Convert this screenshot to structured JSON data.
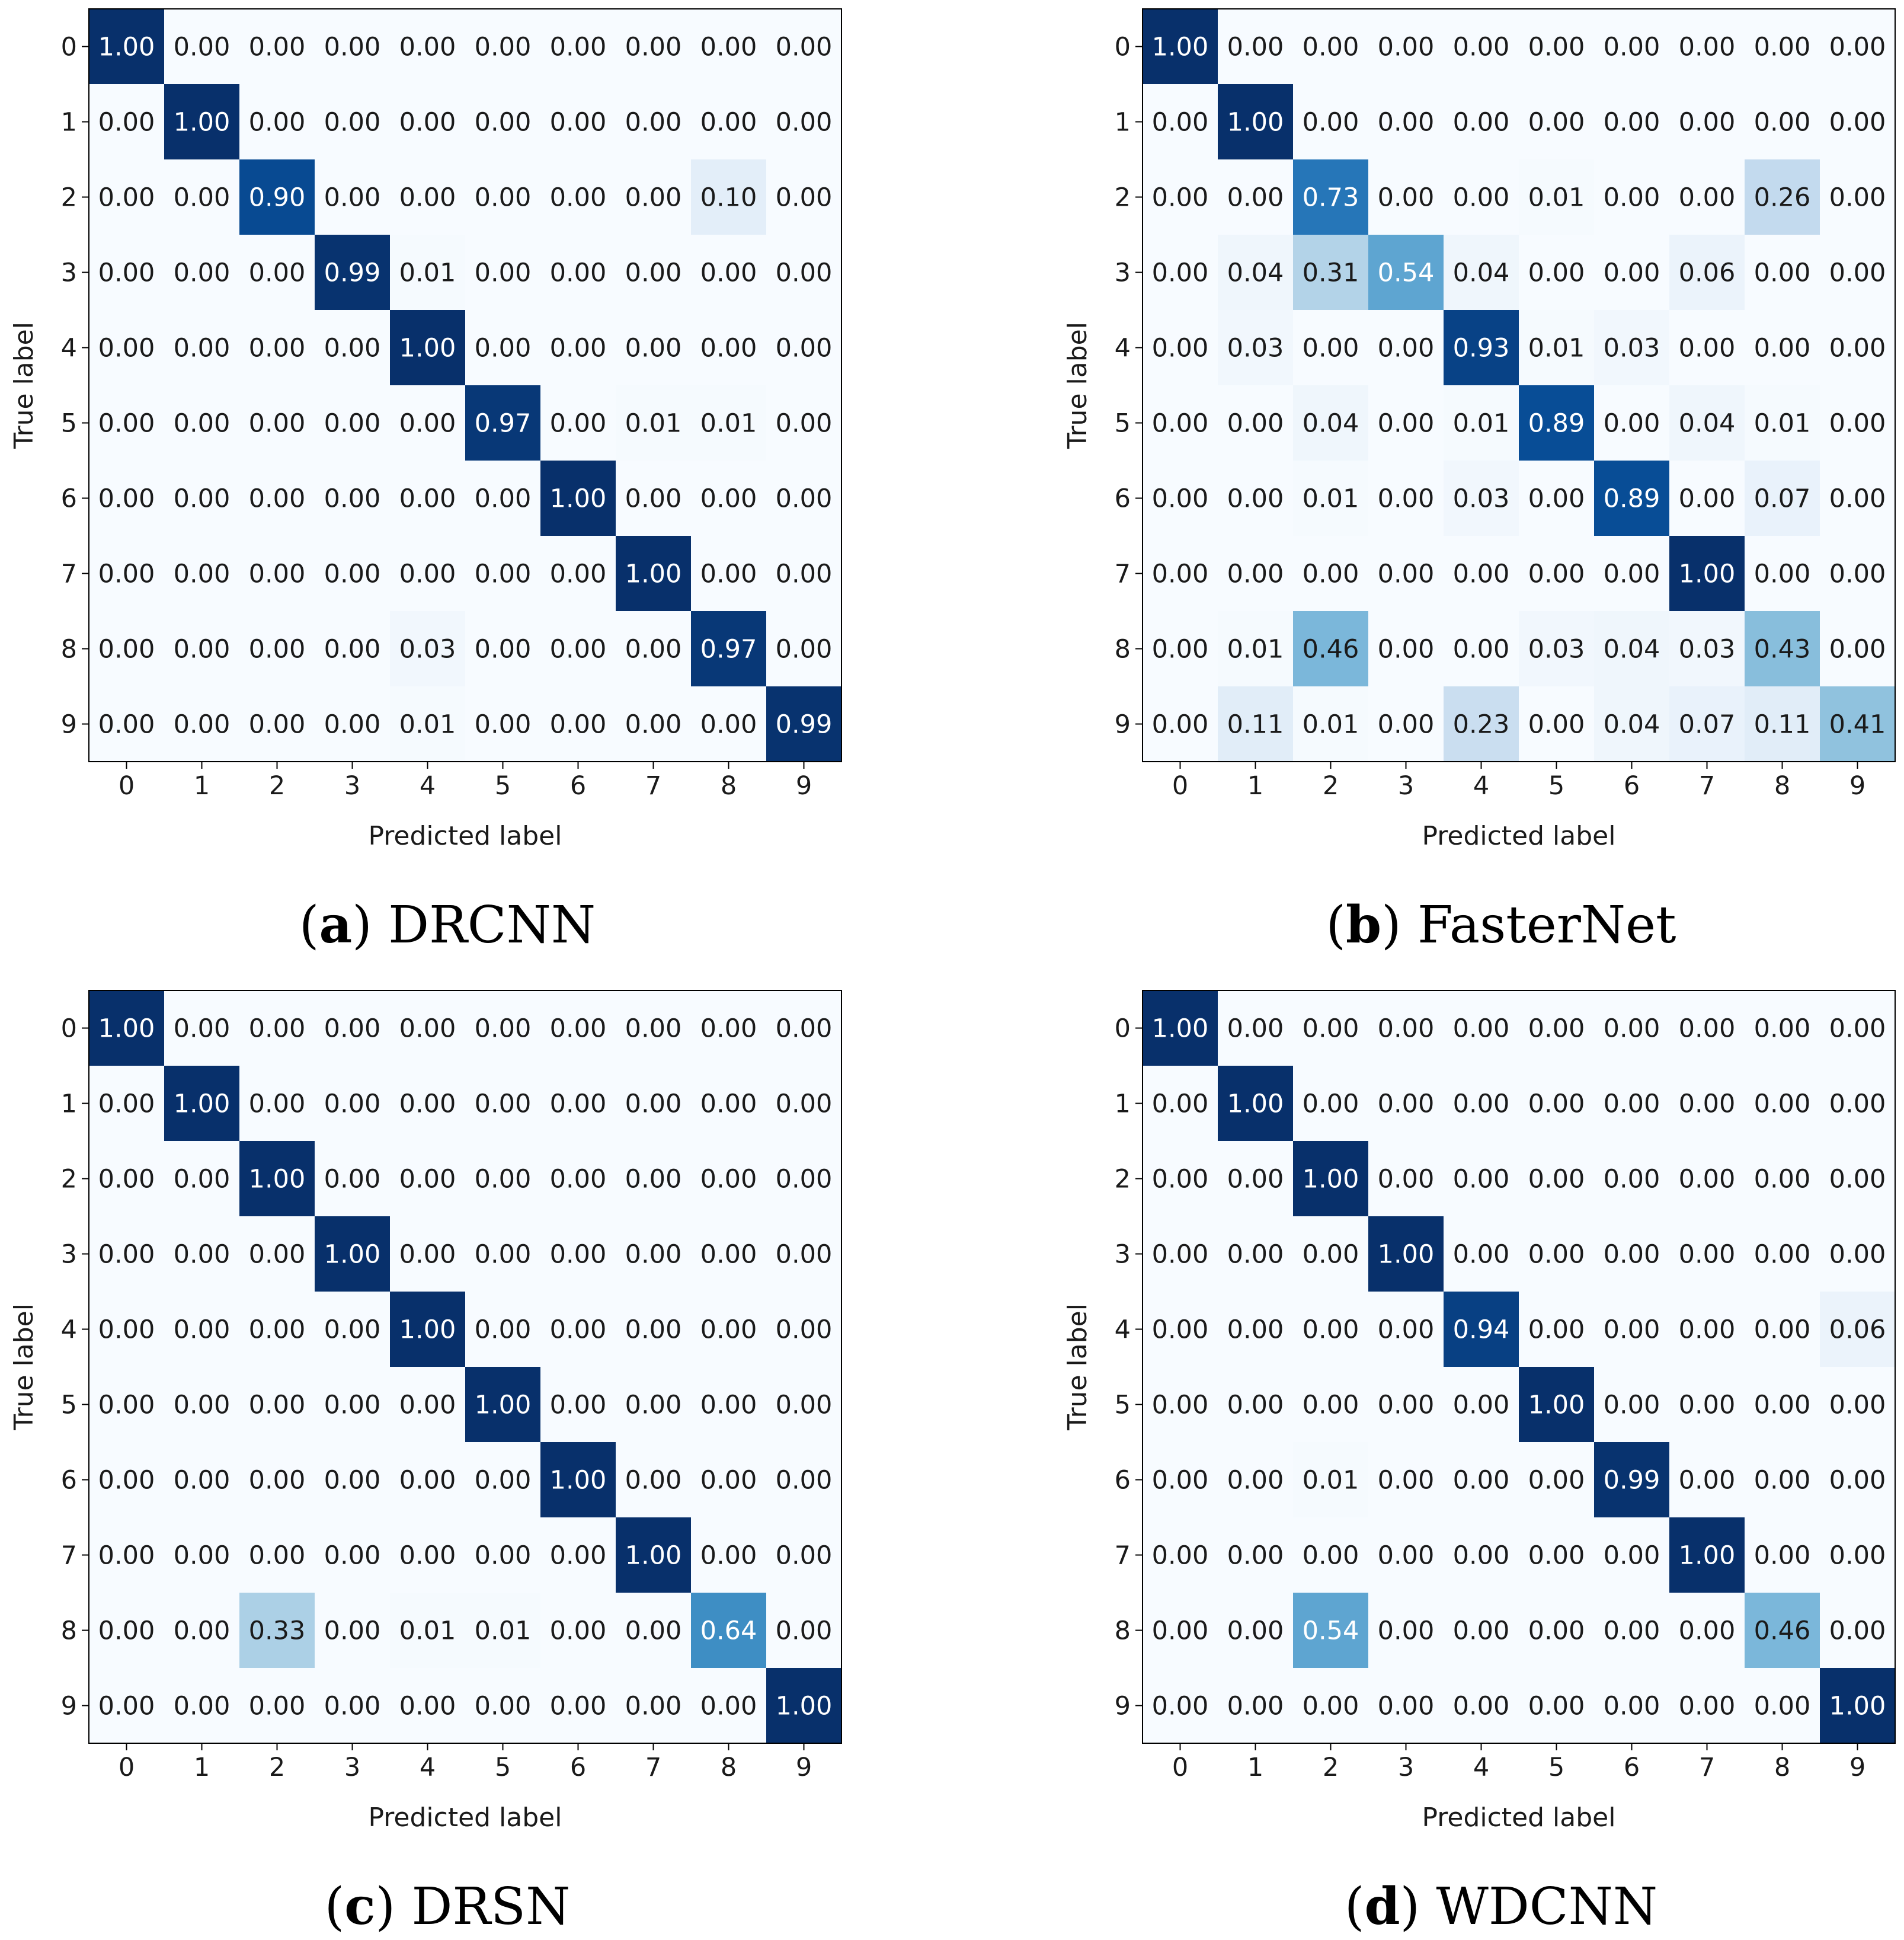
{
  "chart_data": [
    {
      "type": "heatmap",
      "panel_label": "a",
      "model_name": "DRCNN",
      "xlabel": "Predicted label",
      "ylabel": "True label",
      "x_ticks": [
        "0",
        "1",
        "2",
        "3",
        "4",
        "5",
        "6",
        "7",
        "8",
        "9"
      ],
      "y_ticks": [
        "0",
        "1",
        "2",
        "3",
        "4",
        "5",
        "6",
        "7",
        "8",
        "9"
      ],
      "value_range": [
        0,
        1
      ],
      "colormap": "Blues",
      "cells": [
        [
          "1.00",
          "0.00",
          "0.00",
          "0.00",
          "0.00",
          "0.00",
          "0.00",
          "0.00",
          "0.00",
          "0.00"
        ],
        [
          "0.00",
          "1.00",
          "0.00",
          "0.00",
          "0.00",
          "0.00",
          "0.00",
          "0.00",
          "0.00",
          "0.00"
        ],
        [
          "0.00",
          "0.00",
          "0.90",
          "0.00",
          "0.00",
          "0.00",
          "0.00",
          "0.00",
          "0.10",
          "0.00"
        ],
        [
          "0.00",
          "0.00",
          "0.00",
          "0.99",
          "0.01",
          "0.00",
          "0.00",
          "0.00",
          "0.00",
          "0.00"
        ],
        [
          "0.00",
          "0.00",
          "0.00",
          "0.00",
          "1.00",
          "0.00",
          "0.00",
          "0.00",
          "0.00",
          "0.00"
        ],
        [
          "0.00",
          "0.00",
          "0.00",
          "0.00",
          "0.00",
          "0.97",
          "0.00",
          "0.01",
          "0.01",
          "0.00"
        ],
        [
          "0.00",
          "0.00",
          "0.00",
          "0.00",
          "0.00",
          "0.00",
          "1.00",
          "0.00",
          "0.00",
          "0.00"
        ],
        [
          "0.00",
          "0.00",
          "0.00",
          "0.00",
          "0.00",
          "0.00",
          "0.00",
          "1.00",
          "0.00",
          "0.00"
        ],
        [
          "0.00",
          "0.00",
          "0.00",
          "0.00",
          "0.03",
          "0.00",
          "0.00",
          "0.00",
          "0.97",
          "0.00"
        ],
        [
          "0.00",
          "0.00",
          "0.00",
          "0.00",
          "0.01",
          "0.00",
          "0.00",
          "0.00",
          "0.00",
          "0.99"
        ]
      ]
    },
    {
      "type": "heatmap",
      "panel_label": "b",
      "model_name": "FasterNet",
      "xlabel": "Predicted label",
      "ylabel": "True label",
      "x_ticks": [
        "0",
        "1",
        "2",
        "3",
        "4",
        "5",
        "6",
        "7",
        "8",
        "9"
      ],
      "y_ticks": [
        "0",
        "1",
        "2",
        "3",
        "4",
        "5",
        "6",
        "7",
        "8",
        "9"
      ],
      "value_range": [
        0,
        1
      ],
      "colormap": "Blues",
      "cells": [
        [
          "1.00",
          "0.00",
          "0.00",
          "0.00",
          "0.00",
          "0.00",
          "0.00",
          "0.00",
          "0.00",
          "0.00"
        ],
        [
          "0.00",
          "1.00",
          "0.00",
          "0.00",
          "0.00",
          "0.00",
          "0.00",
          "0.00",
          "0.00",
          "0.00"
        ],
        [
          "0.00",
          "0.00",
          "0.73",
          "0.00",
          "0.00",
          "0.01",
          "0.00",
          "0.00",
          "0.26",
          "0.00"
        ],
        [
          "0.00",
          "0.04",
          "0.31",
          "0.54",
          "0.04",
          "0.00",
          "0.00",
          "0.06",
          "0.00",
          "0.00"
        ],
        [
          "0.00",
          "0.03",
          "0.00",
          "0.00",
          "0.93",
          "0.01",
          "0.03",
          "0.00",
          "0.00",
          "0.00"
        ],
        [
          "0.00",
          "0.00",
          "0.04",
          "0.00",
          "0.01",
          "0.89",
          "0.00",
          "0.04",
          "0.01",
          "0.00"
        ],
        [
          "0.00",
          "0.00",
          "0.01",
          "0.00",
          "0.03",
          "0.00",
          "0.89",
          "0.00",
          "0.07",
          "0.00"
        ],
        [
          "0.00",
          "0.00",
          "0.00",
          "0.00",
          "0.00",
          "0.00",
          "0.00",
          "1.00",
          "0.00",
          "0.00"
        ],
        [
          "0.00",
          "0.01",
          "0.46",
          "0.00",
          "0.00",
          "0.03",
          "0.04",
          "0.03",
          "0.43",
          "0.00"
        ],
        [
          "0.00",
          "0.11",
          "0.01",
          "0.00",
          "0.23",
          "0.00",
          "0.04",
          "0.07",
          "0.11",
          "0.41"
        ]
      ]
    },
    {
      "type": "heatmap",
      "panel_label": "c",
      "model_name": "DRSN",
      "xlabel": "Predicted label",
      "ylabel": "True label",
      "x_ticks": [
        "0",
        "1",
        "2",
        "3",
        "4",
        "5",
        "6",
        "7",
        "8",
        "9"
      ],
      "y_ticks": [
        "0",
        "1",
        "2",
        "3",
        "4",
        "5",
        "6",
        "7",
        "8",
        "9"
      ],
      "value_range": [
        0,
        1
      ],
      "colormap": "Blues",
      "cells": [
        [
          "1.00",
          "0.00",
          "0.00",
          "0.00",
          "0.00",
          "0.00",
          "0.00",
          "0.00",
          "0.00",
          "0.00"
        ],
        [
          "0.00",
          "1.00",
          "0.00",
          "0.00",
          "0.00",
          "0.00",
          "0.00",
          "0.00",
          "0.00",
          "0.00"
        ],
        [
          "0.00",
          "0.00",
          "1.00",
          "0.00",
          "0.00",
          "0.00",
          "0.00",
          "0.00",
          "0.00",
          "0.00"
        ],
        [
          "0.00",
          "0.00",
          "0.00",
          "1.00",
          "0.00",
          "0.00",
          "0.00",
          "0.00",
          "0.00",
          "0.00"
        ],
        [
          "0.00",
          "0.00",
          "0.00",
          "0.00",
          "1.00",
          "0.00",
          "0.00",
          "0.00",
          "0.00",
          "0.00"
        ],
        [
          "0.00",
          "0.00",
          "0.00",
          "0.00",
          "0.00",
          "1.00",
          "0.00",
          "0.00",
          "0.00",
          "0.00"
        ],
        [
          "0.00",
          "0.00",
          "0.00",
          "0.00",
          "0.00",
          "0.00",
          "1.00",
          "0.00",
          "0.00",
          "0.00"
        ],
        [
          "0.00",
          "0.00",
          "0.00",
          "0.00",
          "0.00",
          "0.00",
          "0.00",
          "1.00",
          "0.00",
          "0.00"
        ],
        [
          "0.00",
          "0.00",
          "0.33",
          "0.00",
          "0.01",
          "0.01",
          "0.00",
          "0.00",
          "0.64",
          "0.00"
        ],
        [
          "0.00",
          "0.00",
          "0.00",
          "0.00",
          "0.00",
          "0.00",
          "0.00",
          "0.00",
          "0.00",
          "1.00"
        ]
      ]
    },
    {
      "type": "heatmap",
      "panel_label": "d",
      "model_name": "WDCNN",
      "xlabel": "Predicted label",
      "ylabel": "True label",
      "x_ticks": [
        "0",
        "1",
        "2",
        "3",
        "4",
        "5",
        "6",
        "7",
        "8",
        "9"
      ],
      "y_ticks": [
        "0",
        "1",
        "2",
        "3",
        "4",
        "5",
        "6",
        "7",
        "8",
        "9"
      ],
      "value_range": [
        0,
        1
      ],
      "colormap": "Blues",
      "cells": [
        [
          "1.00",
          "0.00",
          "0.00",
          "0.00",
          "0.00",
          "0.00",
          "0.00",
          "0.00",
          "0.00",
          "0.00"
        ],
        [
          "0.00",
          "1.00",
          "0.00",
          "0.00",
          "0.00",
          "0.00",
          "0.00",
          "0.00",
          "0.00",
          "0.00"
        ],
        [
          "0.00",
          "0.00",
          "1.00",
          "0.00",
          "0.00",
          "0.00",
          "0.00",
          "0.00",
          "0.00",
          "0.00"
        ],
        [
          "0.00",
          "0.00",
          "0.00",
          "1.00",
          "0.00",
          "0.00",
          "0.00",
          "0.00",
          "0.00",
          "0.00"
        ],
        [
          "0.00",
          "0.00",
          "0.00",
          "0.00",
          "0.94",
          "0.00",
          "0.00",
          "0.00",
          "0.00",
          "0.06"
        ],
        [
          "0.00",
          "0.00",
          "0.00",
          "0.00",
          "0.00",
          "1.00",
          "0.00",
          "0.00",
          "0.00",
          "0.00"
        ],
        [
          "0.00",
          "0.00",
          "0.01",
          "0.00",
          "0.00",
          "0.00",
          "0.99",
          "0.00",
          "0.00",
          "0.00"
        ],
        [
          "0.00",
          "0.00",
          "0.00",
          "0.00",
          "0.00",
          "0.00",
          "0.00",
          "1.00",
          "0.00",
          "0.00"
        ],
        [
          "0.00",
          "0.00",
          "0.54",
          "0.00",
          "0.00",
          "0.00",
          "0.00",
          "0.00",
          "0.46",
          "0.00"
        ],
        [
          "0.00",
          "0.00",
          "0.00",
          "0.00",
          "0.00",
          "0.00",
          "0.00",
          "0.00",
          "0.00",
          "1.00"
        ]
      ]
    }
  ]
}
